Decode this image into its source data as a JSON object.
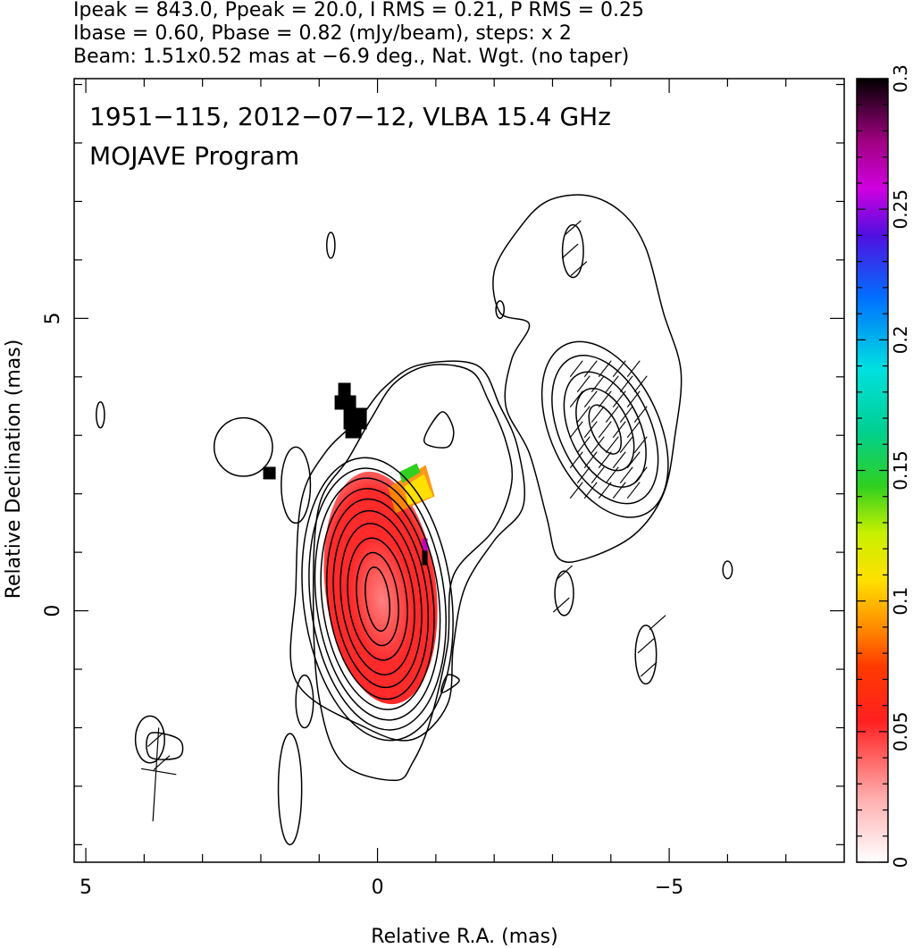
{
  "header": {
    "line1": "Ipeak = 843.0, Ppeak = 20.0, I RMS = 0.21, P RMS = 0.25",
    "line2": "Ibase = 0.60, Pbase = 0.82 (mJy/beam), steps: x 2",
    "line3": "Beam: 1.51x0.52 mas at −6.9 deg., Nat. Wgt. (no taper)"
  },
  "chart_data": {
    "type": "heatmap",
    "title": "1951−115, 2012−07−12, VLBA 15.4 GHz",
    "subtitle": "MOJAVE Program",
    "xlabel": "Relative R.A. (mas)",
    "ylabel": "Relative Declination (mas)",
    "xlim": [
      5.2,
      -8.0
    ],
    "ylim": [
      -4.3,
      9.1
    ],
    "x_ticks": [
      {
        "value": 5,
        "label": "5"
      },
      {
        "value": 0,
        "label": "0"
      },
      {
        "value": -5,
        "label": "−5"
      }
    ],
    "y_ticks": [
      {
        "value": 5,
        "label": "5"
      },
      {
        "value": 0,
        "label": "0"
      }
    ],
    "colorbar": {
      "range": [
        0,
        0.3
      ],
      "ticks": [
        {
          "value": 0,
          "label": "0"
        },
        {
          "value": 0.05,
          "label": "0.05"
        },
        {
          "value": 0.1,
          "label": "0.1"
        },
        {
          "value": 0.15,
          "label": "0.15"
        },
        {
          "value": 0.2,
          "label": "0.2"
        },
        {
          "value": 0.25,
          "label": "0.25"
        },
        {
          "value": 0.3,
          "label": "0.3"
        }
      ]
    },
    "core_contours": {
      "center": [
        0.0,
        0.2
      ],
      "angle_deg": -7,
      "radii": [
        [
          0.2,
          0.55
        ],
        [
          0.35,
          0.8
        ],
        [
          0.5,
          1.05
        ],
        [
          0.62,
          1.3
        ],
        [
          0.74,
          1.52
        ],
        [
          0.85,
          1.72
        ],
        [
          0.95,
          1.9
        ],
        [
          1.05,
          2.08
        ],
        [
          1.15,
          2.25
        ],
        [
          1.27,
          2.43
        ]
      ]
    },
    "west_component_contours": {
      "center": [
        -3.9,
        3.1
      ],
      "angle_deg": -25,
      "radii": [
        [
          0.22,
          0.45
        ],
        [
          0.42,
          0.75
        ],
        [
          0.6,
          1.05
        ],
        [
          0.78,
          1.35
        ],
        [
          0.93,
          1.6
        ]
      ]
    },
    "outer_contours": [
      [
        [
          -0.3,
          -2.9
        ],
        [
          0.6,
          -2.6
        ],
        [
          1.0,
          -1.5
        ],
        [
          1.1,
          0.2
        ],
        [
          1.0,
          1.8
        ],
        [
          0.5,
          2.6
        ],
        [
          0.1,
          3.3
        ],
        [
          -0.3,
          3.9
        ],
        [
          -0.9,
          4.2
        ],
        [
          -1.6,
          4.1
        ],
        [
          -1.9,
          3.6
        ],
        [
          -2.2,
          2.9
        ],
        [
          -2.3,
          2.2
        ],
        [
          -2.0,
          1.4
        ],
        [
          -1.3,
          0.6
        ],
        [
          -1.2,
          -0.6
        ],
        [
          -0.9,
          -1.9
        ],
        [
          -0.6,
          -2.6
        ]
      ],
      [
        [
          0.2,
          -2.0
        ],
        [
          1.4,
          -1.2
        ],
        [
          1.4,
          0.4
        ],
        [
          1.3,
          1.9
        ],
        [
          0.9,
          2.7
        ],
        [
          0.3,
          3.3
        ],
        [
          -0.1,
          3.8
        ],
        [
          -0.7,
          4.2
        ],
        [
          -1.7,
          4.2
        ],
        [
          -2.1,
          3.5
        ],
        [
          -2.4,
          2.8
        ],
        [
          -2.5,
          1.8
        ],
        [
          -2.0,
          1.2
        ],
        [
          -1.5,
          0.4
        ],
        [
          -1.3,
          -0.6
        ],
        [
          -1.2,
          -1.6
        ],
        [
          -0.6,
          -2.2
        ]
      ],
      [
        [
          -1.2,
          2.8
        ],
        [
          -0.8,
          2.9
        ],
        [
          -1.1,
          3.4
        ],
        [
          -1.3,
          3.1
        ]
      ],
      [
        [
          3.4,
          -2.5
        ],
        [
          3.9,
          -2.5
        ],
        [
          3.9,
          -2.1
        ],
        [
          3.4,
          -2.2
        ]
      ],
      [
        [
          -1.4,
          -1.2
        ],
        [
          -1.1,
          -1.4
        ],
        [
          -1.2,
          -1.1
        ]
      ],
      [
        [
          -2.6,
          4.9
        ],
        [
          -2.1,
          5.1
        ],
        [
          -2.0,
          5.8
        ],
        [
          -2.4,
          6.5
        ],
        [
          -2.9,
          7.0
        ],
        [
          -3.6,
          7.1
        ],
        [
          -4.2,
          6.8
        ],
        [
          -4.6,
          6.2
        ],
        [
          -4.9,
          5.1
        ],
        [
          -5.2,
          4.1
        ],
        [
          -5.1,
          3.0
        ],
        [
          -4.9,
          2.0
        ],
        [
          -4.4,
          1.3
        ],
        [
          -3.6,
          0.9
        ],
        [
          -3.1,
          0.9
        ],
        [
          -2.9,
          1.6
        ],
        [
          -2.6,
          2.7
        ],
        [
          -2.2,
          3.5
        ],
        [
          -2.3,
          4.3
        ]
      ]
    ],
    "small_blobs": [
      {
        "cx": 0.8,
        "cy": 6.25,
        "rx": 0.07,
        "ry": 0.22
      },
      {
        "cx": 4.75,
        "cy": 3.35,
        "rx": 0.07,
        "ry": 0.22
      },
      {
        "cx": -2.1,
        "cy": 5.15,
        "rx": 0.07,
        "ry": 0.15
      },
      {
        "cx": -3.2,
        "cy": 0.3,
        "rx": 0.16,
        "ry": 0.38
      },
      {
        "cx": -4.6,
        "cy": -0.75,
        "rx": 0.18,
        "ry": 0.5
      },
      {
        "cx": -3.35,
        "cy": 6.15,
        "rx": 0.18,
        "ry": 0.45
      },
      {
        "cx": -6.0,
        "cy": 0.7,
        "rx": 0.08,
        "ry": 0.15
      },
      {
        "cx": 1.25,
        "cy": -1.55,
        "rx": 0.15,
        "ry": 0.45
      },
      {
        "cx": 1.4,
        "cy": 2.15,
        "rx": 0.25,
        "ry": 0.65
      },
      {
        "cx": 2.3,
        "cy": 2.8,
        "rx": 0.5,
        "ry": 0.5
      },
      {
        "cx": 1.5,
        "cy": -3.05,
        "rx": 0.2,
        "ry": 0.95
      },
      {
        "cx": 3.9,
        "cy": -2.2,
        "rx": 0.25,
        "ry": 0.4
      }
    ]
  }
}
